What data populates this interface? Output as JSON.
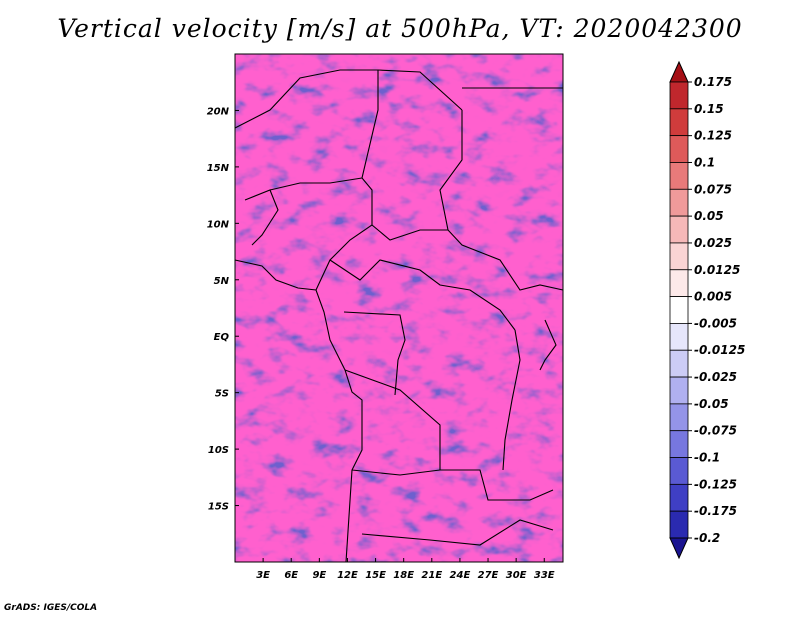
{
  "chart_data": {
    "type": "heatmap",
    "title": "Vertical velocity [m/s] at 500hPa, VT: 2020042300",
    "variable": "Vertical velocity",
    "units": "m/s",
    "level": "500hPa",
    "valid_time": "2020042300",
    "x_range_deg": [
      0,
      35
    ],
    "y_range_deg": [
      -20,
      25
    ],
    "x_ticks": [
      {
        "value": 3,
        "label": "3E"
      },
      {
        "value": 6,
        "label": "6E"
      },
      {
        "value": 9,
        "label": "9E"
      },
      {
        "value": 12,
        "label": "12E"
      },
      {
        "value": 15,
        "label": "15E"
      },
      {
        "value": 18,
        "label": "18E"
      },
      {
        "value": 21,
        "label": "21E"
      },
      {
        "value": 24,
        "label": "24E"
      },
      {
        "value": 27,
        "label": "27E"
      },
      {
        "value": 30,
        "label": "30E"
      },
      {
        "value": 33,
        "label": "33E"
      }
    ],
    "y_ticks": [
      {
        "value": 20,
        "label": "20N"
      },
      {
        "value": 15,
        "label": "15N"
      },
      {
        "value": 10,
        "label": "10N"
      },
      {
        "value": 5,
        "label": "5N"
      },
      {
        "value": 0,
        "label": "EQ"
      },
      {
        "value": -5,
        "label": "5S"
      },
      {
        "value": -10,
        "label": "10S"
      },
      {
        "value": -15,
        "label": "15S"
      }
    ],
    "colorbar": {
      "labels": [
        "0.175",
        "0.15",
        "0.125",
        "0.1",
        "0.075",
        "0.05",
        "0.025",
        "0.0125",
        "0.005",
        "-0.005",
        "-0.0125",
        "-0.025",
        "-0.05",
        "-0.075",
        "-0.1",
        "-0.125",
        "-0.175",
        "-0.2"
      ],
      "colors": [
        "#a50f15",
        "#c0272d",
        "#d03c3c",
        "#de5a5a",
        "#e87a7a",
        "#f09a9a",
        "#f6b8b8",
        "#fad4d4",
        "#fde9e9",
        "#ffffff",
        "#e6e6fb",
        "#ccccf6",
        "#b0b0f0",
        "#9494e8",
        "#7777df",
        "#5a5ad3",
        "#3f3fc4",
        "#2a2ab0",
        "#1a1490"
      ]
    }
  },
  "footer": {
    "credit": "GrADS: IGES/COLA"
  }
}
